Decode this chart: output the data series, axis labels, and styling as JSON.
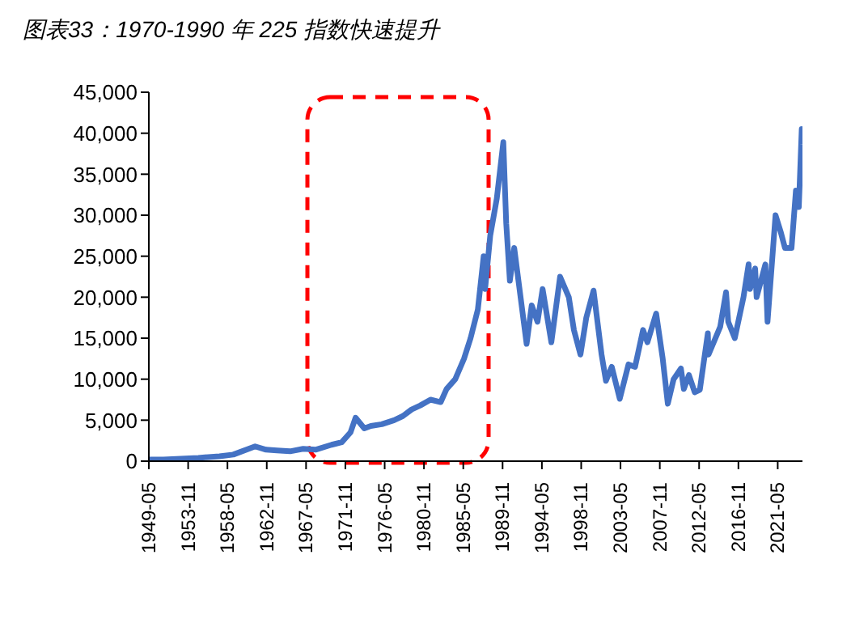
{
  "chart_data": {
    "type": "line",
    "title": "图表33：1970-1990 年 225 指数快速提升",
    "x": [
      "1949-05",
      "1951-01",
      "1953-01",
      "1955-01",
      "1957-06",
      "1959-01",
      "1961-07",
      "1962-10",
      "1964-01",
      "1965-07",
      "1967-01",
      "1968-06",
      "1970-04",
      "1971-06",
      "1972-06",
      "1973-01",
      "1974-01",
      "1974-10",
      "1976-01",
      "1977-06",
      "1978-06",
      "1979-06",
      "1980-06",
      "1981-08",
      "1982-10",
      "1983-06",
      "1984-06",
      "1985-06",
      "1986-03",
      "1987-01",
      "1987-09",
      "1987-11",
      "1988-06",
      "1989-03",
      "1989-12",
      "1990-04",
      "1990-09",
      "1991-03",
      "1992-08",
      "1993-03",
      "1993-11",
      "1994-06",
      "1995-06",
      "1996-06",
      "1997-06",
      "1998-01",
      "1998-10",
      "1999-06",
      "2000-04",
      "2001-03",
      "2001-09",
      "2002-05",
      "2003-04",
      "2004-04",
      "2005-01",
      "2005-12",
      "2006-06",
      "2007-06",
      "2008-03",
      "2008-10",
      "2009-06",
      "2010-04",
      "2010-08",
      "2011-03",
      "2011-11",
      "2012-06",
      "2013-05",
      "2013-06",
      "2014-10",
      "2015-06",
      "2015-09",
      "2016-06",
      "2017-06",
      "2018-01",
      "2018-03",
      "2018-10",
      "2018-12",
      "2019-12",
      "2020-03",
      "2021-02",
      "2021-09",
      "2022-03",
      "2022-12",
      "2023-06",
      "2023-10",
      "2024-02",
      "2024-03"
    ],
    "series": [
      {
        "color": "#4472c4",
        "values": [
          200,
          200,
          300,
          400,
          600,
          800,
          1800,
          1400,
          1300,
          1200,
          1500,
          1400,
          2000,
          2300,
          3500,
          5300,
          4000,
          4300,
          4500,
          5000,
          5500,
          6300,
          6800,
          7500,
          7200,
          8800,
          10000,
          12500,
          15000,
          18500,
          25000,
          21000,
          27500,
          32000,
          38900,
          29000,
          22000,
          26000,
          14300,
          19000,
          17000,
          21000,
          14500,
          22500,
          20000,
          16000,
          13000,
          17500,
          20800,
          13000,
          9800,
          11500,
          7600,
          11800,
          11500,
          16000,
          14500,
          18000,
          12500,
          7000,
          10000,
          11300,
          8800,
          10500,
          8400,
          8700,
          15600,
          13000,
          16400,
          20600,
          17000,
          15000,
          20000,
          24000,
          21000,
          23500,
          20000,
          24000,
          17000,
          30000,
          28000,
          26000,
          26000,
          33000,
          31000,
          40500,
          38600
        ]
      }
    ],
    "xlim": [
      "1949-05",
      "2024-03"
    ],
    "xticks": [
      "1949-05",
      "1953-11",
      "1958-05",
      "1962-11",
      "1967-05",
      "1971-11",
      "1976-05",
      "1980-11",
      "1985-05",
      "1989-11",
      "1994-05",
      "1998-11",
      "2003-05",
      "2007-11",
      "2012-05",
      "2016-11",
      "2021-05"
    ],
    "ylim": [
      0,
      45000
    ],
    "yticks": [
      {
        "value": 0,
        "label": "0"
      },
      {
        "value": 5000,
        "label": "5,000"
      },
      {
        "value": 10000,
        "label": "10,000"
      },
      {
        "value": 15000,
        "label": "15,000"
      },
      {
        "value": 20000,
        "label": "20,000"
      },
      {
        "value": 25000,
        "label": "25,000"
      },
      {
        "value": 30000,
        "label": "30,000"
      },
      {
        "value": 35000,
        "label": "35,000"
      },
      {
        "value": 40000,
        "label": "40,000"
      },
      {
        "value": 45000,
        "label": "45,000"
      }
    ]
  }
}
